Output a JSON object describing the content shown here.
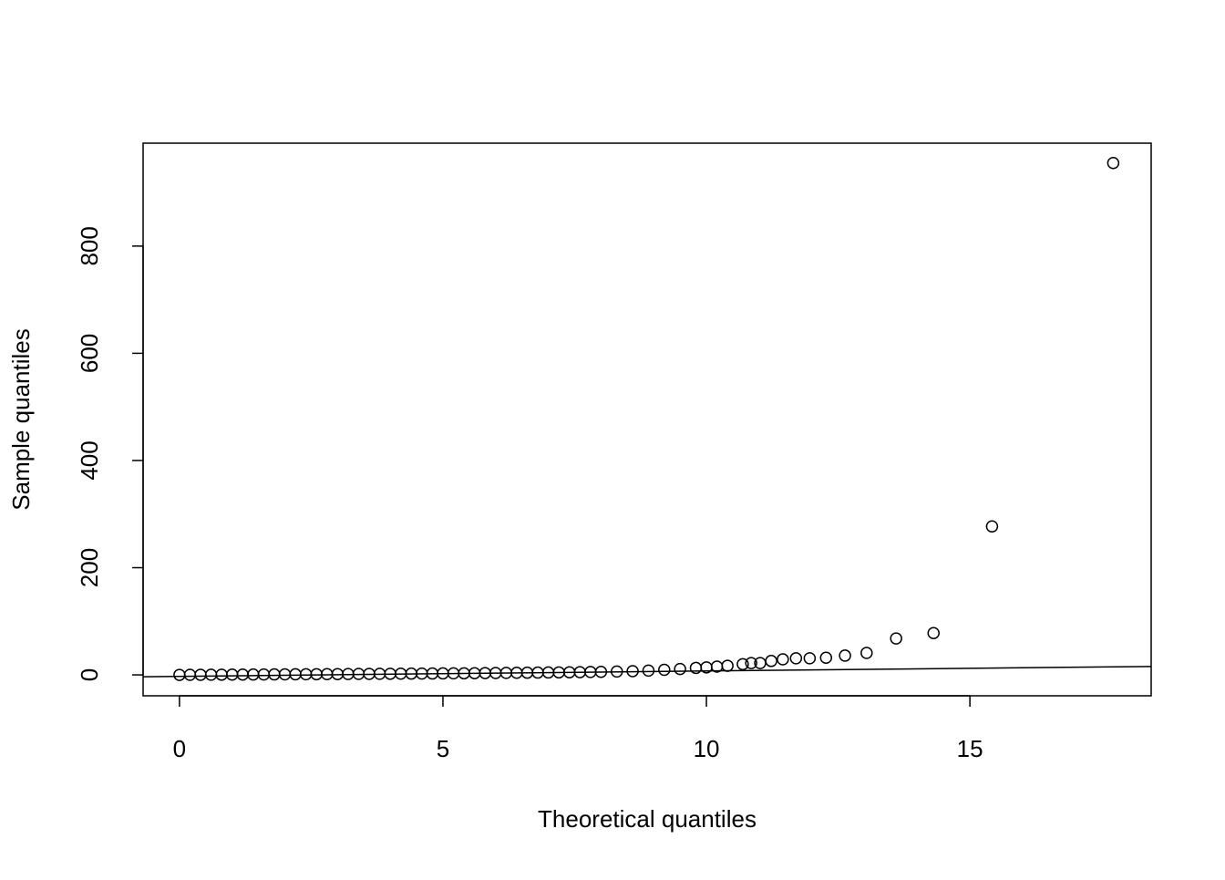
{
  "chart_data": {
    "type": "scatter",
    "x_label": "Theoretical quantiles",
    "y_label": "Sample quantiles",
    "x": [
      0,
      0.2,
      0.4,
      0.6,
      0.8,
      1.0,
      1.2,
      1.4,
      1.6,
      1.8,
      2.0,
      2.2,
      2.4,
      2.6,
      2.8,
      3.0,
      3.2,
      3.4,
      3.6,
      3.8,
      4.0,
      4.2,
      4.4,
      4.6,
      4.8,
      5.0,
      5.2,
      5.4,
      5.6,
      5.8,
      6.0,
      6.2,
      6.4,
      6.6,
      6.8,
      7.0,
      7.2,
      7.4,
      7.6,
      7.8,
      8.0,
      8.3,
      8.6,
      8.9,
      9.2,
      9.5,
      9.8,
      10.0,
      10.2,
      10.4,
      10.69,
      10.85,
      11.02,
      11.23,
      11.45,
      11.7,
      11.96,
      12.27,
      12.63,
      13.04,
      13.6,
      14.31,
      15.42,
      17.72
    ],
    "values": [
      0,
      0.1,
      0.2,
      0.3,
      0.4,
      0.5,
      0.6,
      0.7,
      0.8,
      0.9,
      1.0,
      1.1,
      1.2,
      1.3,
      1.4,
      1.5,
      1.6,
      1.8,
      1.9,
      2.0,
      2.1,
      2.2,
      2.4,
      2.5,
      2.6,
      2.8,
      2.9,
      3.0,
      3.2,
      3.4,
      3.5,
      3.7,
      3.9,
      4.1,
      4.3,
      4.5,
      4.7,
      4.9,
      5.1,
      5.4,
      5.6,
      6.3,
      7,
      8,
      9.5,
      11,
      13,
      14,
      15.5,
      17,
      20,
      22,
      22,
      26,
      29,
      31,
      31,
      32,
      36,
      41,
      68,
      78,
      277,
      955
    ],
    "color": "#000000",
    "reference_line": {
      "intercept": -2.7,
      "slope": 1
    },
    "xlim": [
      -0.69,
      18.44
    ],
    "ylim": [
      -39,
      992
    ],
    "xticks": [
      0,
      5,
      10,
      15
    ],
    "yticks": [
      0,
      200,
      400,
      600,
      800
    ]
  }
}
